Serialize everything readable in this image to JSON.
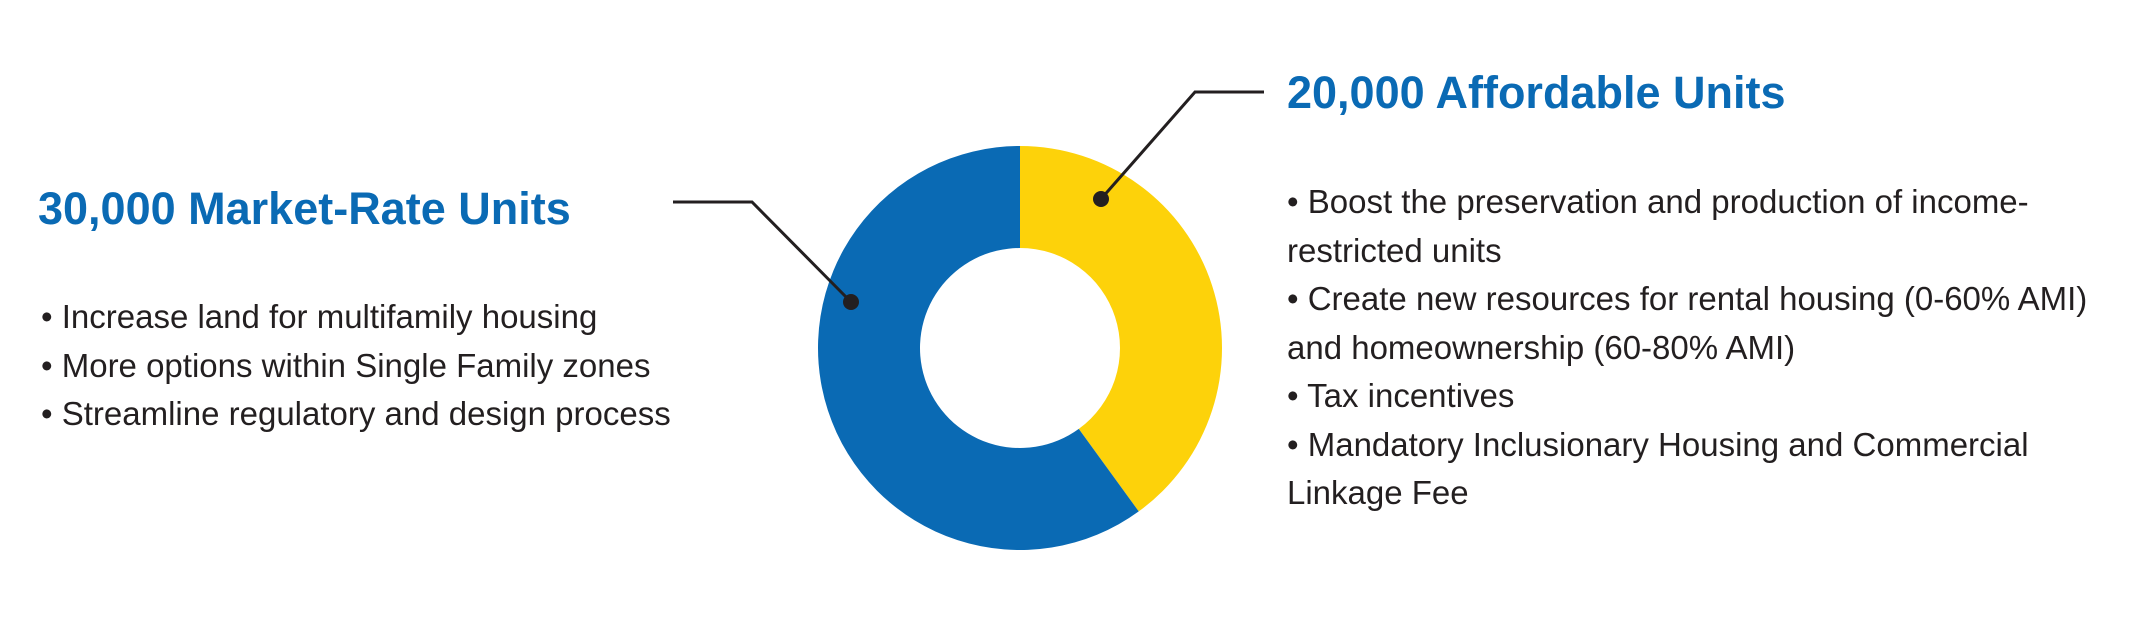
{
  "chart_data": {
    "type": "pie",
    "labels": [
      "30,000 Market-Rate Units",
      "20,000 Affordable Units"
    ],
    "values": [
      30000,
      20000
    ],
    "colors": [
      "#0a6ab4",
      "#fdd20a"
    ],
    "bullets": [
      [
        "• Increase land for multifamily housing",
        "• More options within Single Family zones",
        "• Streamline regulatory and design process"
      ],
      [
        "• Boost the preservation and production of income-restricted units",
        "• Create new resources for rental housing (0-60% AMI) and homeownership (60-80% AMI)",
        "• Tax incentives",
        "• Mandatory Inclusionary Housing and Commercial Linkage Fee"
      ]
    ]
  }
}
